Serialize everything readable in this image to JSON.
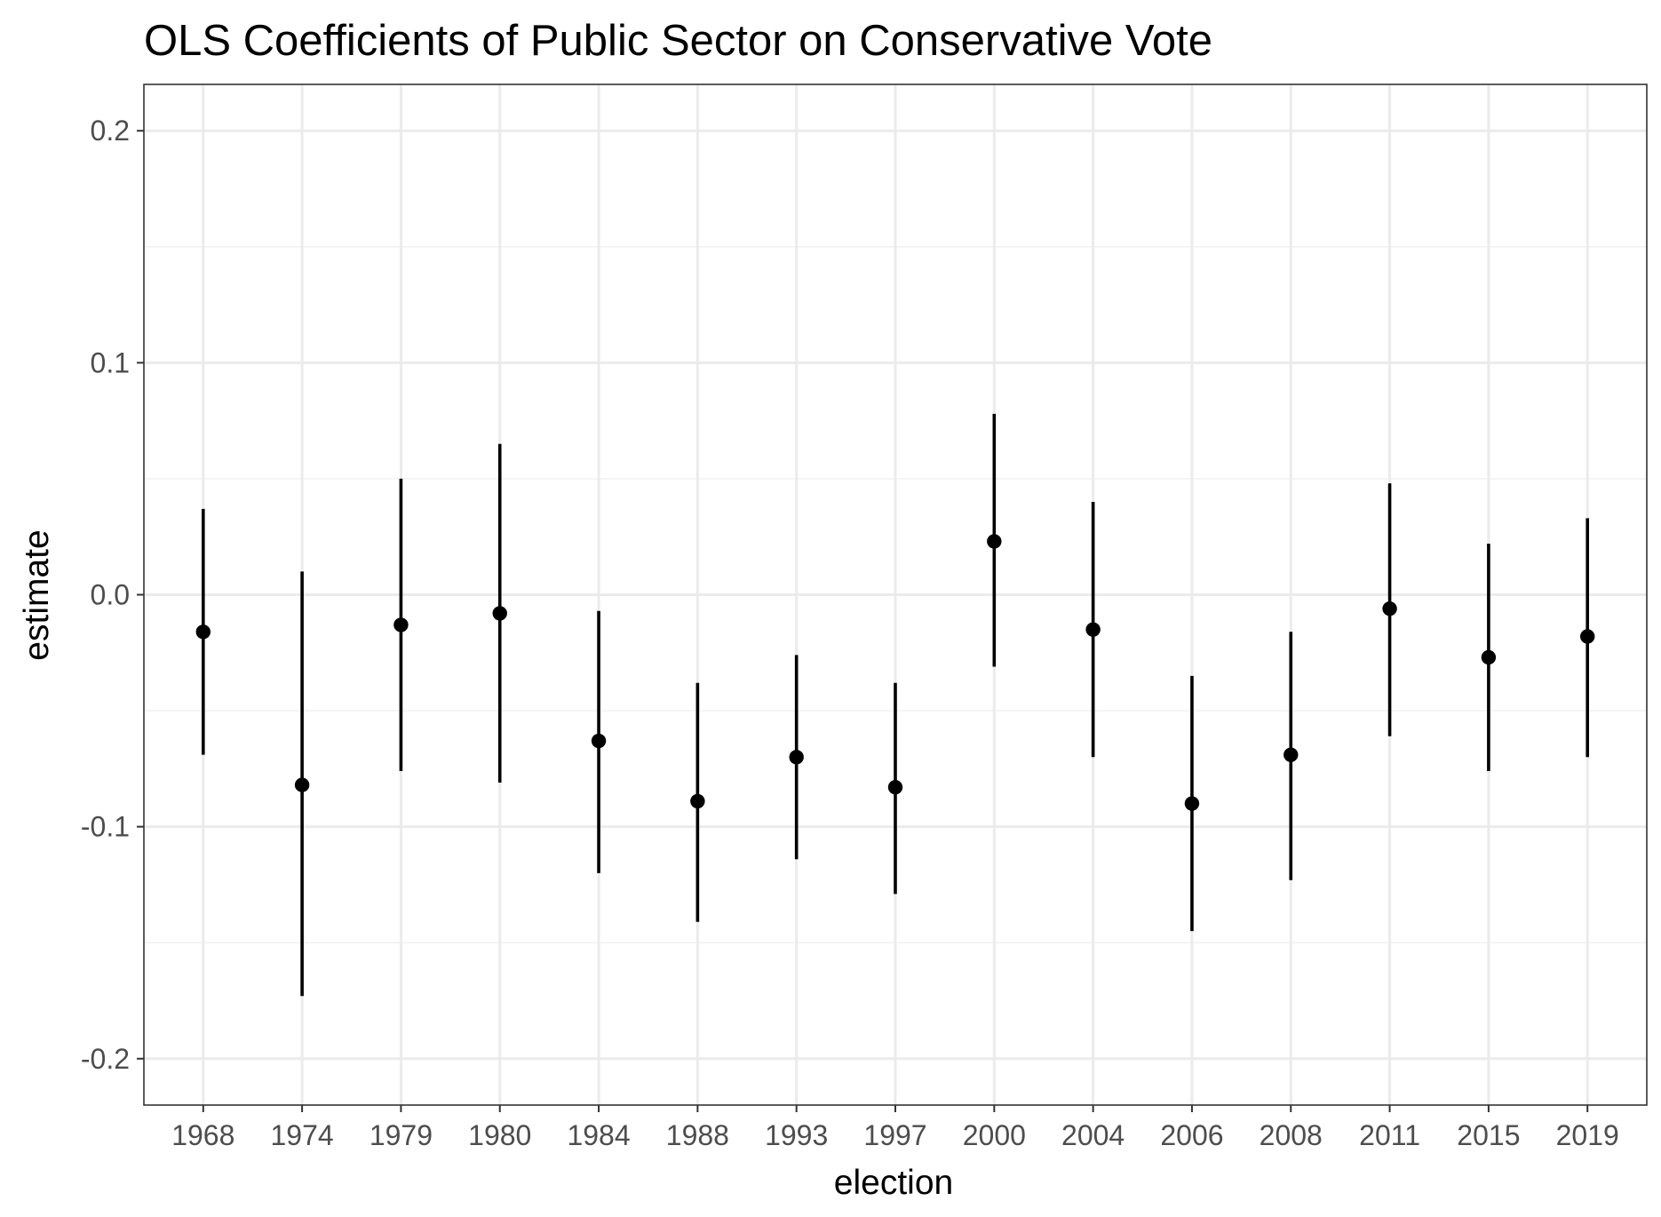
{
  "chart_data": {
    "type": "scatter",
    "subtype": "point-range",
    "title": "OLS Coefficients of Public Sector on Conservative Vote",
    "xlabel": "election",
    "ylabel": "estimate",
    "categories": [
      "1968",
      "1974",
      "1979",
      "1980",
      "1984",
      "1988",
      "1993",
      "1997",
      "2000",
      "2004",
      "2006",
      "2008",
      "2011",
      "2015",
      "2019"
    ],
    "estimate": [
      -0.016,
      -0.082,
      -0.013,
      -0.008,
      -0.063,
      -0.089,
      -0.07,
      -0.083,
      0.023,
      -0.015,
      -0.09,
      -0.069,
      -0.006,
      -0.027,
      -0.018
    ],
    "lower": [
      -0.069,
      -0.173,
      -0.076,
      -0.081,
      -0.12,
      -0.141,
      -0.114,
      -0.129,
      -0.031,
      -0.07,
      -0.145,
      -0.123,
      -0.061,
      -0.076,
      -0.07
    ],
    "upper": [
      0.037,
      0.01,
      0.05,
      0.065,
      -0.007,
      -0.038,
      -0.026,
      -0.038,
      0.078,
      0.04,
      -0.035,
      -0.016,
      0.048,
      0.022,
      0.033
    ],
    "ylim": [
      -0.22,
      0.22
    ],
    "yticks": [
      -0.2,
      -0.1,
      0.0,
      0.1,
      0.2
    ],
    "ytick_labels": [
      "-0.2",
      "-0.1",
      "0.0",
      "0.1",
      "0.2"
    ],
    "grid": true,
    "legend": "none",
    "colors": {
      "point": "#000000",
      "panel_border": "#333333",
      "grid_major": "#ebebeb",
      "grid_minor": "#f2f2f2",
      "tick_text": "#4d4d4d"
    }
  }
}
